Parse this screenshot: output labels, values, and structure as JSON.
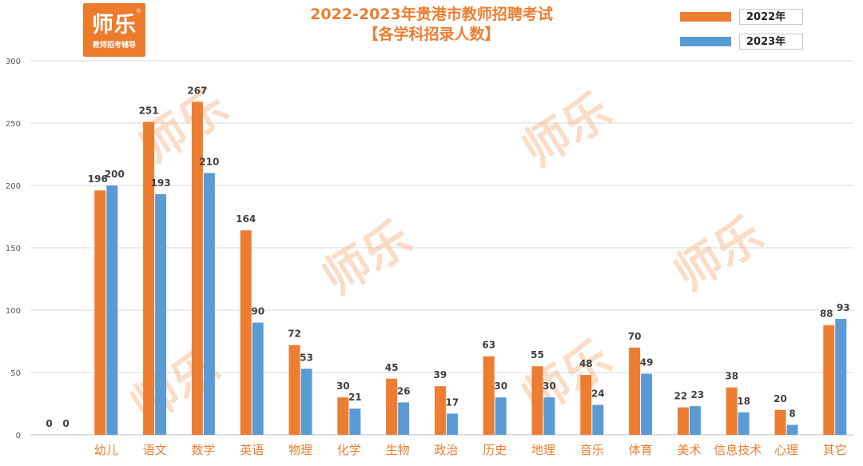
{
  "logo": {
    "main": "师乐",
    "sub": "教师招考辅导",
    "reg": "®"
  },
  "watermark": "师乐",
  "title_line1": "2022-2023年贵港市教师招聘考试",
  "title_line2": "【各学科招录人数】",
  "colors": {
    "series2022": "#ed7d31",
    "series2023": "#5b9bd5",
    "title": "#ed7d31",
    "category_label": "#ed7d31",
    "watermark": "#f4b183"
  },
  "chart_data": {
    "type": "bar",
    "title": "2022-2023年贵港市教师招聘考试【各学科招录人数】",
    "categories": [
      "",
      "幼儿",
      "语文",
      "数学",
      "英语",
      "物理",
      "化学",
      "生物",
      "政治",
      "历史",
      "地理",
      "音乐",
      "体育",
      "美术",
      "信息技术",
      "心理",
      "其它"
    ],
    "series": [
      {
        "name": "2022年",
        "values": [
          0,
          196,
          251,
          267,
          164,
          72,
          30,
          45,
          39,
          63,
          55,
          48,
          70,
          22,
          38,
          20,
          88
        ]
      },
      {
        "name": "2023年",
        "values": [
          0,
          200,
          193,
          210,
          90,
          53,
          21,
          26,
          17,
          30,
          30,
          24,
          49,
          23,
          18,
          8,
          93
        ]
      }
    ],
    "ylim": [
      0,
      300
    ],
    "yticks": [
      0,
      50,
      100,
      150,
      200,
      250,
      300
    ],
    "grid": true,
    "legend": "top-right",
    "xlabel": "",
    "ylabel": ""
  }
}
